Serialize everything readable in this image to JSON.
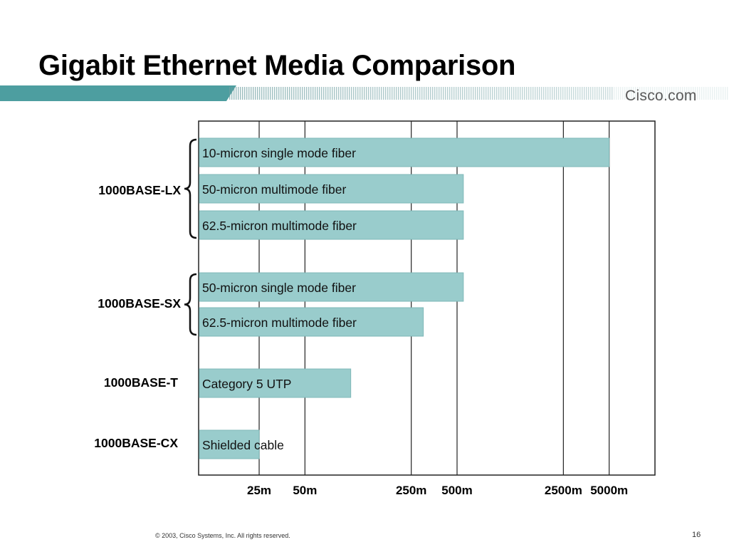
{
  "slide": {
    "title": "Gigabit Ethernet Media Comparison",
    "brand": "Cisco.com",
    "copyright": "© 2003, Cisco Systems, Inc. All rights reserved.",
    "page_number": "16"
  },
  "colors": {
    "bar_fill": "#99cccc",
    "bar_stroke": "#7fb8b8",
    "header_band": "#4d9ea0",
    "grid": "#222222"
  },
  "chart_data": {
    "type": "bar",
    "orientation": "horizontal",
    "x_scale": "log",
    "x_ticks": [
      {
        "value": 25,
        "label": "25m"
      },
      {
        "value": 50,
        "label": "50m"
      },
      {
        "value": 250,
        "label": "250m"
      },
      {
        "value": 500,
        "label": "500m"
      },
      {
        "value": 2500,
        "label": "2500m"
      },
      {
        "value": 5000,
        "label": "5000m"
      }
    ],
    "xlim": [
      10,
      10000
    ],
    "grid": true,
    "groups": [
      {
        "name": "1000BASE-LX",
        "bars": [
          {
            "label": "10-micron single mode fiber",
            "value": 5000
          },
          {
            "label": "50-micron multimode fiber",
            "value": 550
          },
          {
            "label": "62.5-micron multimode fiber",
            "value": 550
          }
        ]
      },
      {
        "name": "1000BASE-SX",
        "bars": [
          {
            "label": "50-micron single mode fiber",
            "value": 550
          },
          {
            "label": "62.5-micron multimode fiber",
            "value": 300
          }
        ]
      },
      {
        "name": "1000BASE-T",
        "bars": [
          {
            "label": "Category 5 UTP",
            "value": 100
          }
        ]
      },
      {
        "name": "1000BASE-CX",
        "bars": [
          {
            "label": "Shielded cable",
            "value": 25
          }
        ]
      }
    ]
  }
}
